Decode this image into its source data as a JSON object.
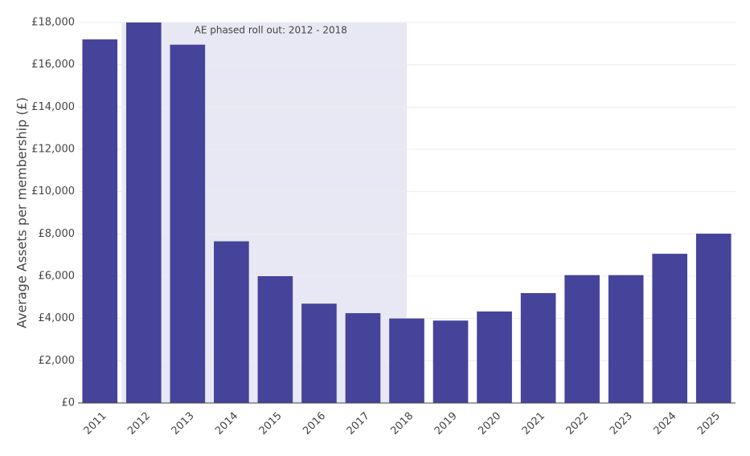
{
  "chart_data": {
    "type": "bar",
    "y_label": "Average Assets per membership (£)",
    "categories": [
      "2011",
      "2012",
      "2013",
      "2014",
      "2015",
      "2016",
      "2017",
      "2018",
      "2019",
      "2020",
      "2021",
      "2022",
      "2023",
      "2024",
      "2025"
    ],
    "values": [
      17200,
      18000,
      16950,
      7650,
      6000,
      4700,
      4250,
      4000,
      3900,
      4330,
      5200,
      6050,
      6050,
      7060,
      8010
    ],
    "color": "#45449a",
    "highlight": {
      "from": "2012",
      "to": "2018",
      "label": "AE phased roll out: 2012 - 2018",
      "color": "#e8e8f4"
    },
    "ylim": [
      0,
      18000
    ],
    "yticks": [
      {
        "value": 0,
        "label": "£0"
      },
      {
        "value": 2000,
        "label": "£2,000"
      },
      {
        "value": 4000,
        "label": "£4,000"
      },
      {
        "value": 6000,
        "label": "£6,000"
      },
      {
        "value": 8000,
        "label": "£8,000"
      },
      {
        "value": 10000,
        "label": "£10,000"
      },
      {
        "value": 12000,
        "label": "£12,000"
      },
      {
        "value": 14000,
        "label": "£14,000"
      },
      {
        "value": 16000,
        "label": "£16,000"
      },
      {
        "value": 18000,
        "label": "£18,000"
      }
    ],
    "grid": true
  }
}
